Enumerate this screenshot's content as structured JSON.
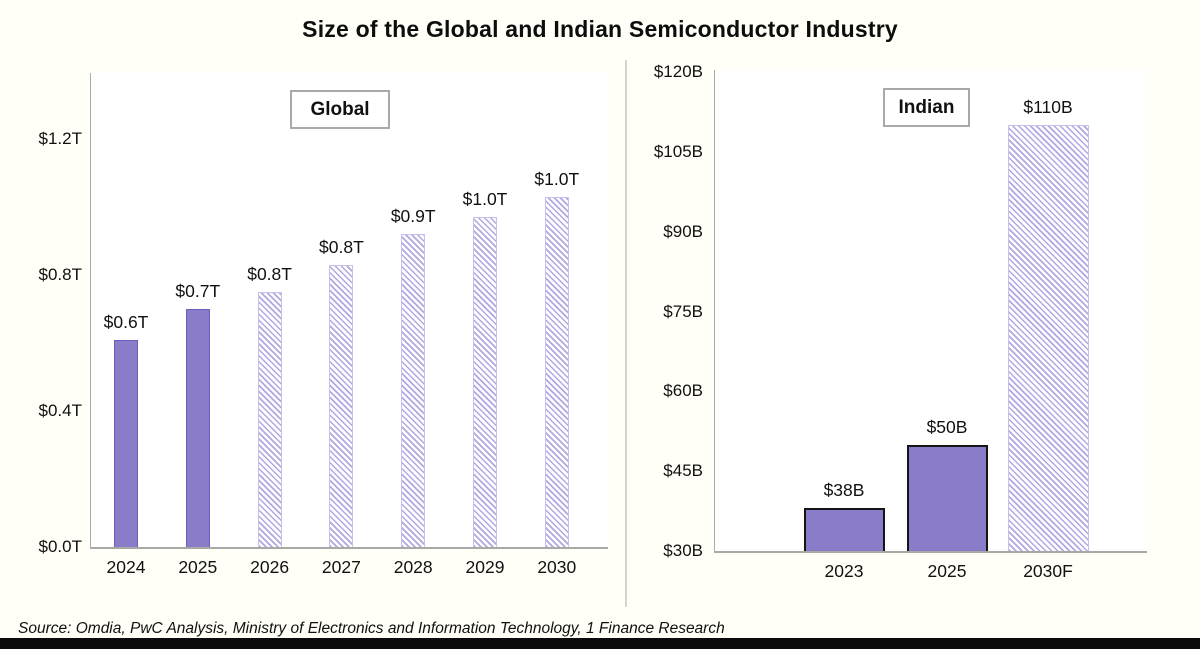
{
  "title": "Size of the Global and Indian Semiconductor Industry",
  "source": "Source: Omdia, PwC Analysis, Ministry of Electronics and Information Technology, 1 Finance Research",
  "colors": {
    "bar_fill_solid": "#8A7CC8",
    "bar_border_solid_left_panel": "#6C5EBB",
    "bar_border_solid_right_panel": "#151515",
    "hatch_stripe": "#B0A8E0",
    "axis": "#A8A8A4",
    "background": "#FFFEF7",
    "bottom_strip": "#0B0B0B"
  },
  "chart_data": [
    {
      "type": "bar",
      "title": "Global",
      "unit": "trillion USD",
      "categories": [
        "2024",
        "2025",
        "2026",
        "2027",
        "2028",
        "2029",
        "2030"
      ],
      "values": [
        0.61,
        0.7,
        0.75,
        0.83,
        0.92,
        0.97,
        1.03
      ],
      "labels": [
        "$0.6T",
        "$0.7T",
        "$0.8T",
        "$0.8T",
        "$0.9T",
        "$1.0T",
        "$1.0T"
      ],
      "bar_styles": [
        "solid",
        "solid",
        "hatched",
        "hatched",
        "hatched",
        "hatched",
        "hatched"
      ],
      "ylim": [
        0,
        1.4
      ],
      "grid": false,
      "legend_position": "top-center-boxed",
      "yticks": [
        {
          "value": 0.0,
          "label": "$0.0T"
        },
        {
          "value": 0.4,
          "label": "$0.4T"
        },
        {
          "value": 0.8,
          "label": "$0.8T"
        },
        {
          "value": 1.2,
          "label": "$1.2T"
        }
      ]
    },
    {
      "type": "bar",
      "title": "Indian",
      "unit": "billion USD",
      "categories": [
        "2023",
        "2025",
        "2030F"
      ],
      "values": [
        38,
        50,
        110
      ],
      "labels": [
        "$38B",
        "$50B",
        "$110B"
      ],
      "bar_styles": [
        "solid",
        "solid",
        "hatched"
      ],
      "ylim": [
        30,
        120
      ],
      "grid": false,
      "legend_position": "top-center-boxed",
      "yticks": [
        {
          "value": 30,
          "label": "$30B"
        },
        {
          "value": 45,
          "label": "$45B"
        },
        {
          "value": 60,
          "label": "$60B"
        },
        {
          "value": 75,
          "label": "$75B"
        },
        {
          "value": 90,
          "label": "$90B"
        },
        {
          "value": 105,
          "label": "$105B"
        },
        {
          "value": 120,
          "label": "$120B"
        }
      ]
    }
  ]
}
